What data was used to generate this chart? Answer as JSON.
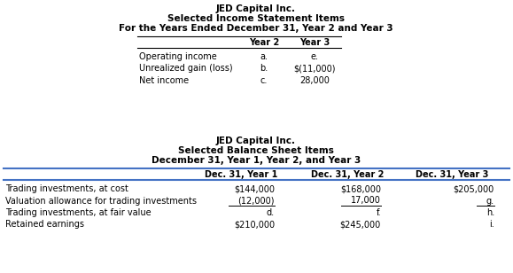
{
  "title1_line1": "JED Capital Inc.",
  "title1_line2": "Selected Income Statement Items",
  "title1_line3": "For the Years Ended December 31, Year 2 and Year 3",
  "income_rows": [
    [
      "Operating income",
      "a.",
      "e."
    ],
    [
      "Unrealized gain (loss)",
      "b.",
      "$(11,000)"
    ],
    [
      "Net income",
      "c.",
      "28,000"
    ]
  ],
  "title2_line1": "JED Capital Inc.",
  "title2_line2": "Selected Balance Sheet Items",
  "title2_line3": "December 31, Year 1, Year 2, and Year 3",
  "balance_rows": [
    [
      "Trading investments, at cost",
      "$144,000",
      "$168,000",
      "$205,000"
    ],
    [
      "Valuation allowance for trading investments",
      "(12,000)",
      "17,000",
      "g."
    ],
    [
      "Trading investments, at fair value",
      "d.",
      "f.",
      "h."
    ],
    [
      "Retained earnings",
      "$210,000",
      "$245,000",
      "i."
    ]
  ],
  "bg_color": "#ffffff",
  "text_color": "#000000",
  "fs_title": 7.5,
  "fs_body": 7.0
}
